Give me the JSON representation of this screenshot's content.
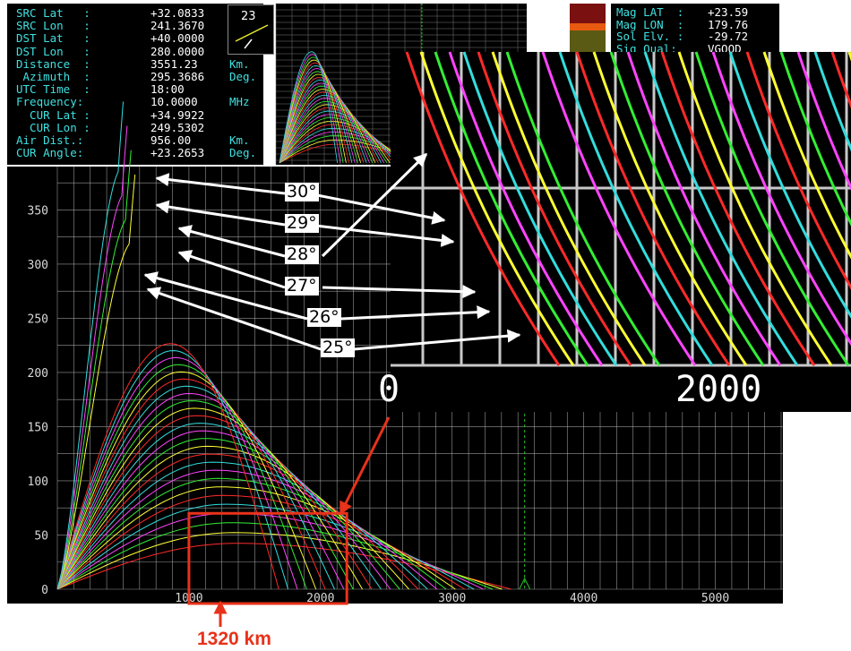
{
  "params": [
    {
      "label": "SRC Lat   :",
      "value": "+32.0833",
      "unit": ""
    },
    {
      "label": "SRC Lon   :",
      "value": "241.3670",
      "unit": ""
    },
    {
      "label": "DST Lat   :",
      "value": "+40.0000",
      "unit": ""
    },
    {
      "label": "DST Lon   :",
      "value": "280.0000",
      "unit": ""
    },
    {
      "label": "Distance  :",
      "value": "3551.23",
      "unit": "Km."
    },
    {
      "label": " Azimuth  :",
      "value": "295.3686",
      "unit": "Deg."
    },
    {
      "label": "UTC Time  :",
      "value": "18:00",
      "unit": ""
    },
    {
      "label": "Frequency:",
      "value": "10.0000",
      "unit": "MHz"
    },
    {
      "label": "  CUR Lat :",
      "value": "+34.9922",
      "unit": ""
    },
    {
      "label": "  CUR Lon :",
      "value": "249.5302",
      "unit": ""
    },
    {
      "label": "Air Dist.:",
      "value": "956.00",
      "unit": "Km."
    },
    {
      "label": "CUR Angle:",
      "value": "+23.2653",
      "unit": "Deg."
    }
  ],
  "angle_box": {
    "value": "23"
  },
  "mag": [
    {
      "label": "Mag LAT  :",
      "value": "+23.59"
    },
    {
      "label": "Mag LON  :",
      "value": "179.76"
    },
    {
      "label": "Sol Elv. :",
      "value": "-29.72"
    },
    {
      "label": "Sig Qual:",
      "value": "VGOOD"
    }
  ],
  "colors": {
    "background": "#000000",
    "grid": "#bdbdbd",
    "axis_text": "#d8d8d8",
    "cursor": "#25c425",
    "highlight_box": "#e8321a",
    "ray_palette": [
      "#ff2a2a",
      "#ffff33",
      "#33ee33",
      "#ff44ff",
      "#33dddd"
    ]
  },
  "chart_data": {
    "type": "line",
    "title": "",
    "xlabel": "",
    "ylabel": "",
    "xlim": [
      0,
      5500
    ],
    "ylim": [
      0,
      390
    ],
    "x_ticks": [
      1000,
      2000,
      3000,
      4000,
      5000
    ],
    "y_ticks": [
      0,
      50,
      100,
      150,
      200,
      250,
      300,
      350
    ],
    "grid": true,
    "cursor_x": 3551,
    "series_description_angles_deg": [
      1,
      2,
      3,
      4,
      5,
      6,
      7,
      8,
      9,
      10,
      11,
      12,
      13,
      14,
      15,
      16,
      17,
      18,
      19,
      20,
      21,
      22,
      23,
      24,
      25,
      26,
      27,
      28,
      29,
      30
    ],
    "highlight_region": {
      "x": [
        1000,
        2200
      ],
      "y": [
        0,
        70
      ]
    },
    "zoom_inset": {
      "x_tick_label": "2000",
      "x_left_tick_label": "0"
    },
    "angle_annotations": [
      "30°",
      "29°",
      "28°",
      "27°",
      "26°",
      "25°"
    ],
    "skip_distance_label": "1320 km"
  }
}
